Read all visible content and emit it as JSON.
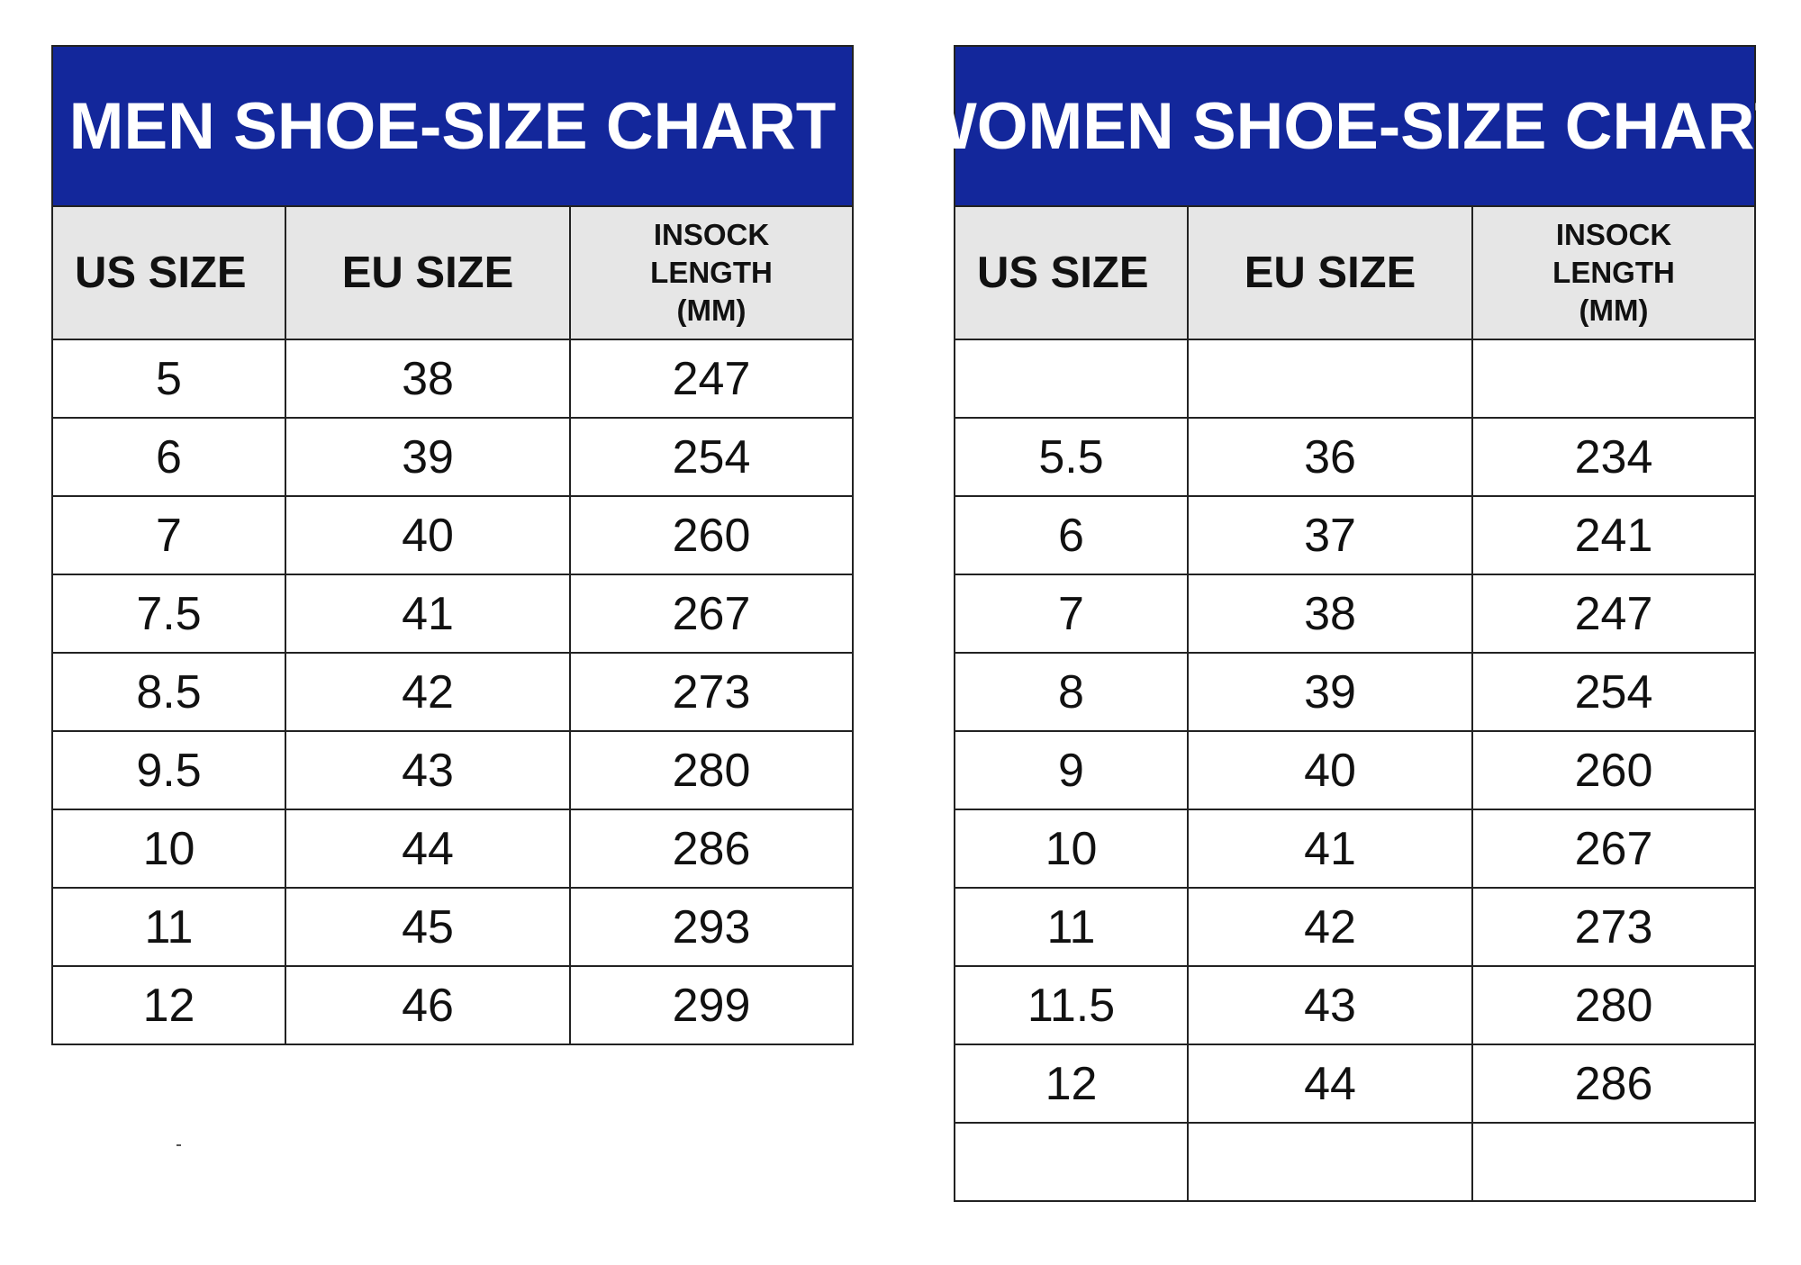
{
  "men_chart": {
    "title": "MEN SHOE-SIZE CHART",
    "headers": {
      "us": "US SIZE",
      "eu": "EU SIZE",
      "insock": [
        "INSOCK",
        "LENGTH",
        "(MM)"
      ]
    },
    "rows": [
      [
        "5",
        "38",
        "247"
      ],
      [
        "6",
        "39",
        "254"
      ],
      [
        "7",
        "40",
        "260"
      ],
      [
        "7.5",
        "41",
        "267"
      ],
      [
        "8.5",
        "42",
        "273"
      ],
      [
        "9.5",
        "43",
        "280"
      ],
      [
        "10",
        "44",
        "286"
      ],
      [
        "11",
        "45",
        "293"
      ],
      [
        "12",
        "46",
        "299"
      ]
    ]
  },
  "women_chart": {
    "title": "WOMEN SHOE-SIZE CHART",
    "headers": {
      "us": "US SIZE",
      "eu": "EU SIZE",
      "insock": [
        "INSOCK",
        "LENGTH",
        "(MM)"
      ]
    },
    "rows": [
      [
        "",
        "",
        ""
      ],
      [
        "5.5",
        "36",
        "234"
      ],
      [
        "6",
        "37",
        "241"
      ],
      [
        "7",
        "38",
        "247"
      ],
      [
        "8",
        "39",
        "254"
      ],
      [
        "9",
        "40",
        "260"
      ],
      [
        "10",
        "41",
        "267"
      ],
      [
        "11",
        "42",
        "273"
      ],
      [
        "11.5",
        "43",
        "280"
      ],
      [
        "12",
        "44",
        "286"
      ],
      [
        "",
        "",
        ""
      ]
    ]
  },
  "colors": {
    "header_blue": "#13279b",
    "header_gray": "#e6e6e6",
    "border": "#222222"
  }
}
